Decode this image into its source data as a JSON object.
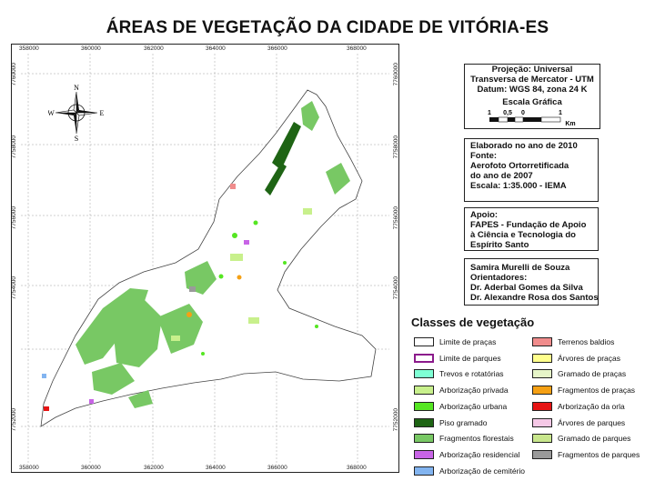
{
  "title": "ÁREAS DE VEGETAÇÃO DA CIDADE DE VITÓRIA-ES",
  "grid": {
    "x_ticks": [
      "358000",
      "360000",
      "362000",
      "364000",
      "366000",
      "368000"
    ],
    "y_ticks": [
      "7760000",
      "7758000",
      "7756000",
      "7754000",
      "7752000"
    ]
  },
  "compass": {
    "n": "N",
    "s": "S",
    "e": "E",
    "w": "W"
  },
  "projection_box": {
    "lines": [
      "Projeção: Universal",
      "Transversa de Mercator - UTM",
      "Datum: WGS 84, zona 24 K"
    ],
    "scale_title": "Escala Gráfica",
    "scale_labels": [
      "1",
      "0,5",
      "0",
      "1"
    ],
    "scale_unit": "Km"
  },
  "source_box": {
    "lines": [
      "Elaborado no ano de 2010",
      "Fonte:",
      "Aerofoto Ortorretificada",
      "do ano de 2007",
      "Escala: 1:35.000 - IEMA"
    ]
  },
  "support_box": {
    "lines": [
      "Apoio:",
      "FAPES - Fundação de Apoio",
      "à Ciência e Tecnologia do",
      "Espírito Santo"
    ]
  },
  "authors_box": {
    "lines": [
      "Samira Murelli de Souza",
      "Orientadores:",
      "Dr. Aderbal Gomes da Silva",
      "Dr. Alexandre Rosa dos Santos"
    ]
  },
  "legend": {
    "title": "Classes de vegetação",
    "left": [
      {
        "label": "Limite de praças",
        "color": "#ffffff",
        "border": "#222222"
      },
      {
        "label": "Limite de parques",
        "color": "#ffffff",
        "border": "#8b1a8b"
      },
      {
        "label": "Trevos e rotatórias",
        "color": "#7fffd4",
        "border": "#222222"
      },
      {
        "label": "Arborização privada",
        "color": "#c8f08c",
        "border": "#222222"
      },
      {
        "label": "Arborização urbana",
        "color": "#55e622",
        "border": "#222222"
      },
      {
        "label": "Piso gramado",
        "color": "#1e6414",
        "border": "#222222"
      },
      {
        "label": "Fragmentos florestais",
        "color": "#78c864",
        "border": "#222222"
      },
      {
        "label": "Arborização residencial",
        "color": "#c864e6",
        "border": "#222222"
      },
      {
        "label": "Arborização de cemitério",
        "color": "#82b4f0",
        "border": "#222222"
      }
    ],
    "right": [
      {
        "label": "Terrenos baldios",
        "color": "#f08c8c",
        "border": "#222222"
      },
      {
        "label": "Árvores de praças",
        "color": "#ffff8c",
        "border": "#222222"
      },
      {
        "label": "Gramado de praças",
        "color": "#e6f5c8",
        "border": "#222222"
      },
      {
        "label": "Fragmentos de praças",
        "color": "#f5a014",
        "border": "#222222"
      },
      {
        "label": "Arborização da orla",
        "color": "#e61414",
        "border": "#222222"
      },
      {
        "label": "Árvores de parques",
        "color": "#f5c8e6",
        "border": "#222222"
      },
      {
        "label": "Gramado de parques",
        "color": "#c8e68c",
        "border": "#222222"
      },
      {
        "label": "Fragmentos de parques",
        "color": "#9a9a9a",
        "border": "#222222"
      }
    ]
  }
}
